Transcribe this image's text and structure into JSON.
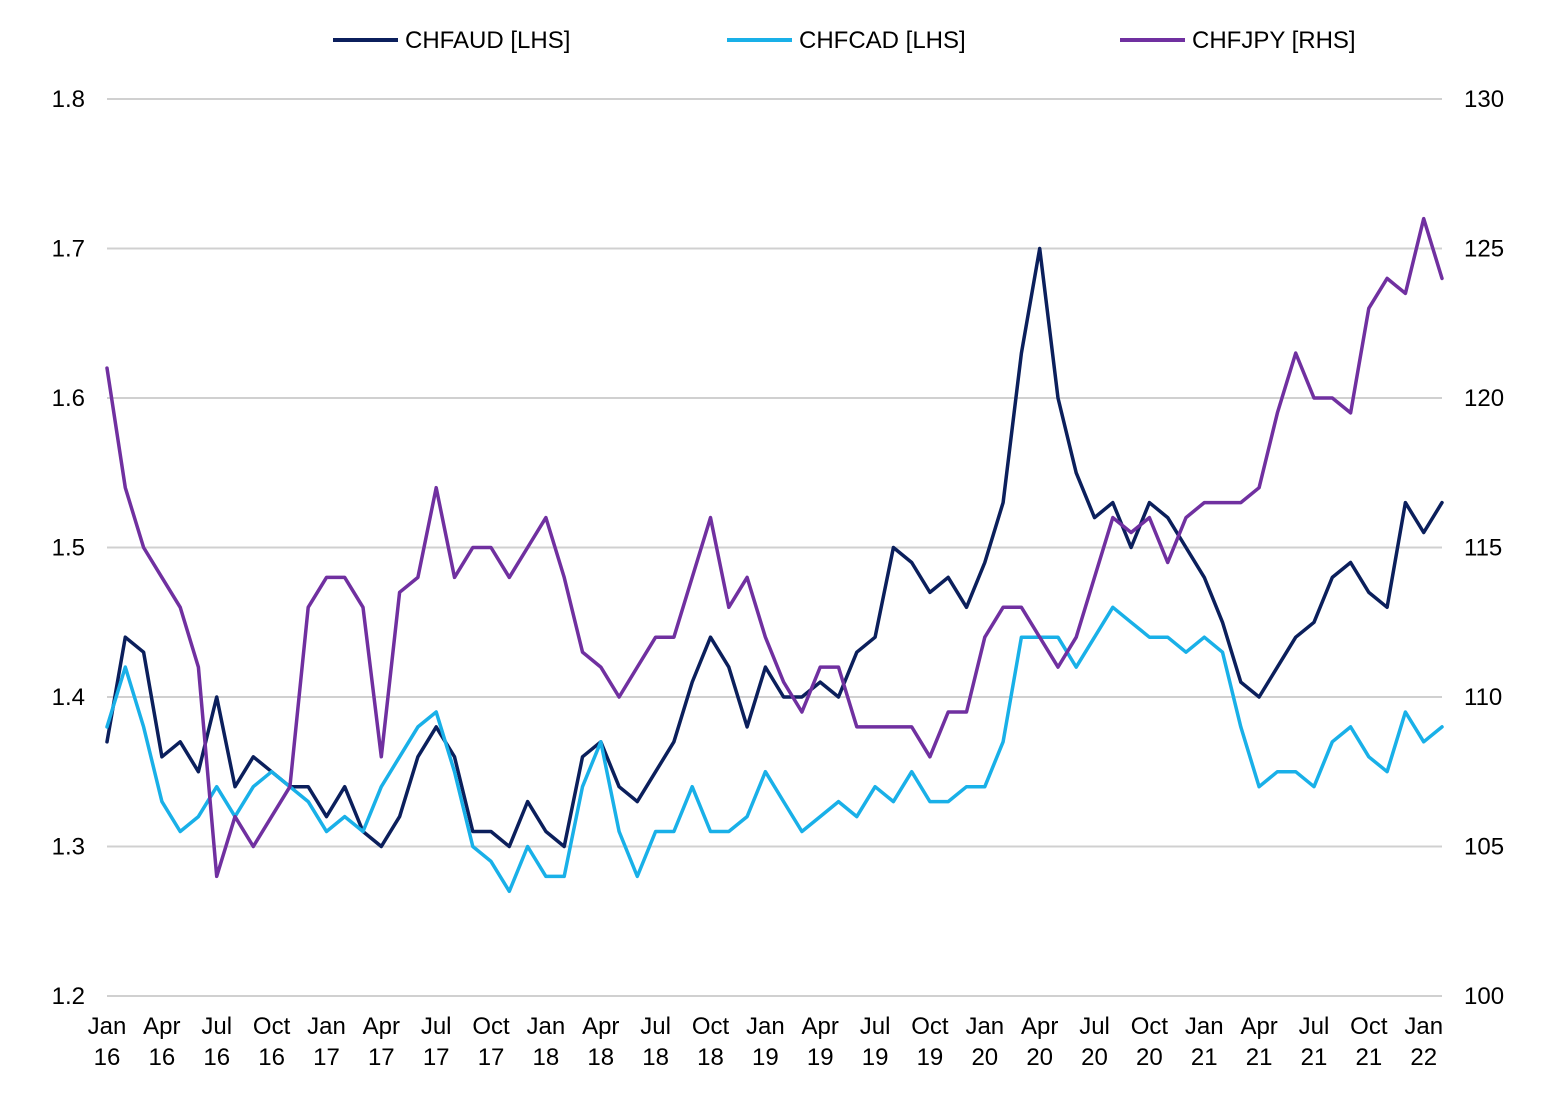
{
  "chart_data": {
    "type": "line",
    "legend_position": "top",
    "grid": true,
    "x_tick_labels": [
      {
        "month": "Jan",
        "year": "16"
      },
      {
        "month": "Apr",
        "year": "16"
      },
      {
        "month": "Jul",
        "year": "16"
      },
      {
        "month": "Oct",
        "year": "16"
      },
      {
        "month": "Jan",
        "year": "17"
      },
      {
        "month": "Apr",
        "year": "17"
      },
      {
        "month": "Jul",
        "year": "17"
      },
      {
        "month": "Oct",
        "year": "17"
      },
      {
        "month": "Jan",
        "year": "18"
      },
      {
        "month": "Apr",
        "year": "18"
      },
      {
        "month": "Jul",
        "year": "18"
      },
      {
        "month": "Oct",
        "year": "18"
      },
      {
        "month": "Jan",
        "year": "19"
      },
      {
        "month": "Apr",
        "year": "19"
      },
      {
        "month": "Jul",
        "year": "19"
      },
      {
        "month": "Oct",
        "year": "19"
      },
      {
        "month": "Jan",
        "year": "20"
      },
      {
        "month": "Apr",
        "year": "20"
      },
      {
        "month": "Jul",
        "year": "20"
      },
      {
        "month": "Oct",
        "year": "20"
      },
      {
        "month": "Jan",
        "year": "21"
      },
      {
        "month": "Apr",
        "year": "21"
      },
      {
        "month": "Jul",
        "year": "21"
      },
      {
        "month": "Oct",
        "year": "21"
      },
      {
        "month": "Jan",
        "year": "22"
      }
    ],
    "left_axis": {
      "ylim": [
        1.2,
        1.8
      ],
      "ticks": [
        "1.2",
        "1.3",
        "1.4",
        "1.5",
        "1.6",
        "1.7",
        "1.8"
      ]
    },
    "right_axis": {
      "ylim": [
        100,
        130
      ],
      "ticks": [
        "100",
        "105",
        "110",
        "115",
        "120",
        "125",
        "130"
      ]
    },
    "x_range": [
      "2016-01",
      "2022-02"
    ],
    "series": [
      {
        "name": "CHFAUD [LHS]",
        "axis": "left",
        "color": "#0b1f5c",
        "points": [
          [
            "2016-01",
            1.37
          ],
          [
            "2016-02",
            1.44
          ],
          [
            "2016-03",
            1.43
          ],
          [
            "2016-04",
            1.36
          ],
          [
            "2016-05",
            1.37
          ],
          [
            "2016-06",
            1.35
          ],
          [
            "2016-07",
            1.4
          ],
          [
            "2016-08",
            1.34
          ],
          [
            "2016-09",
            1.36
          ],
          [
            "2016-10",
            1.35
          ],
          [
            "2016-11",
            1.34
          ],
          [
            "2016-12",
            1.34
          ],
          [
            "2017-01",
            1.32
          ],
          [
            "2017-02",
            1.34
          ],
          [
            "2017-03",
            1.31
          ],
          [
            "2017-04",
            1.3
          ],
          [
            "2017-05",
            1.32
          ],
          [
            "2017-06",
            1.36
          ],
          [
            "2017-07",
            1.38
          ],
          [
            "2017-08",
            1.36
          ],
          [
            "2017-09",
            1.31
          ],
          [
            "2017-10",
            1.31
          ],
          [
            "2017-11",
            1.3
          ],
          [
            "2017-12",
            1.33
          ],
          [
            "2018-01",
            1.31
          ],
          [
            "2018-02",
            1.3
          ],
          [
            "2018-03",
            1.36
          ],
          [
            "2018-04",
            1.37
          ],
          [
            "2018-05",
            1.34
          ],
          [
            "2018-06",
            1.33
          ],
          [
            "2018-07",
            1.35
          ],
          [
            "2018-08",
            1.37
          ],
          [
            "2018-09",
            1.41
          ],
          [
            "2018-10",
            1.44
          ],
          [
            "2018-11",
            1.42
          ],
          [
            "2018-12",
            1.38
          ],
          [
            "2019-01",
            1.42
          ],
          [
            "2019-02",
            1.4
          ],
          [
            "2019-03",
            1.4
          ],
          [
            "2019-04",
            1.41
          ],
          [
            "2019-05",
            1.4
          ],
          [
            "2019-06",
            1.43
          ],
          [
            "2019-07",
            1.44
          ],
          [
            "2019-08",
            1.5
          ],
          [
            "2019-09",
            1.49
          ],
          [
            "2019-10",
            1.47
          ],
          [
            "2019-11",
            1.48
          ],
          [
            "2019-12",
            1.46
          ],
          [
            "2020-01",
            1.49
          ],
          [
            "2020-02",
            1.53
          ],
          [
            "2020-03",
            1.63
          ],
          [
            "2020-04",
            1.7
          ],
          [
            "2020-05",
            1.6
          ],
          [
            "2020-06",
            1.55
          ],
          [
            "2020-07",
            1.52
          ],
          [
            "2020-08",
            1.53
          ],
          [
            "2020-09",
            1.5
          ],
          [
            "2020-10",
            1.53
          ],
          [
            "2020-11",
            1.52
          ],
          [
            "2020-12",
            1.5
          ],
          [
            "2021-01",
            1.48
          ],
          [
            "2021-02",
            1.45
          ],
          [
            "2021-03",
            1.41
          ],
          [
            "2021-04",
            1.4
          ],
          [
            "2021-05",
            1.42
          ],
          [
            "2021-06",
            1.44
          ],
          [
            "2021-07",
            1.45
          ],
          [
            "2021-08",
            1.48
          ],
          [
            "2021-09",
            1.49
          ],
          [
            "2021-10",
            1.47
          ],
          [
            "2021-11",
            1.46
          ],
          [
            "2021-12",
            1.53
          ],
          [
            "2022-01",
            1.51
          ],
          [
            "2022-02",
            1.53
          ]
        ]
      },
      {
        "name": "CHFCAD [LHS]",
        "axis": "left",
        "color": "#19b0e8",
        "points": [
          [
            "2016-01",
            1.38
          ],
          [
            "2016-02",
            1.42
          ],
          [
            "2016-03",
            1.38
          ],
          [
            "2016-04",
            1.33
          ],
          [
            "2016-05",
            1.31
          ],
          [
            "2016-06",
            1.32
          ],
          [
            "2016-07",
            1.34
          ],
          [
            "2016-08",
            1.32
          ],
          [
            "2016-09",
            1.34
          ],
          [
            "2016-10",
            1.35
          ],
          [
            "2016-11",
            1.34
          ],
          [
            "2016-12",
            1.33
          ],
          [
            "2017-01",
            1.31
          ],
          [
            "2017-02",
            1.32
          ],
          [
            "2017-03",
            1.31
          ],
          [
            "2017-04",
            1.34
          ],
          [
            "2017-05",
            1.36
          ],
          [
            "2017-06",
            1.38
          ],
          [
            "2017-07",
            1.39
          ],
          [
            "2017-08",
            1.35
          ],
          [
            "2017-09",
            1.3
          ],
          [
            "2017-10",
            1.29
          ],
          [
            "2017-11",
            1.27
          ],
          [
            "2017-12",
            1.3
          ],
          [
            "2018-01",
            1.28
          ],
          [
            "2018-02",
            1.28
          ],
          [
            "2018-03",
            1.34
          ],
          [
            "2018-04",
            1.37
          ],
          [
            "2018-05",
            1.31
          ],
          [
            "2018-06",
            1.28
          ],
          [
            "2018-07",
            1.31
          ],
          [
            "2018-08",
            1.31
          ],
          [
            "2018-09",
            1.34
          ],
          [
            "2018-10",
            1.31
          ],
          [
            "2018-11",
            1.31
          ],
          [
            "2018-12",
            1.32
          ],
          [
            "2019-01",
            1.35
          ],
          [
            "2019-02",
            1.33
          ],
          [
            "2019-03",
            1.31
          ],
          [
            "2019-04",
            1.32
          ],
          [
            "2019-05",
            1.33
          ],
          [
            "2019-06",
            1.32
          ],
          [
            "2019-07",
            1.34
          ],
          [
            "2019-08",
            1.33
          ],
          [
            "2019-09",
            1.35
          ],
          [
            "2019-10",
            1.33
          ],
          [
            "2019-11",
            1.33
          ],
          [
            "2019-12",
            1.34
          ],
          [
            "2020-01",
            1.34
          ],
          [
            "2020-02",
            1.37
          ],
          [
            "2020-03",
            1.44
          ],
          [
            "2020-04",
            1.44
          ],
          [
            "2020-05",
            1.44
          ],
          [
            "2020-06",
            1.42
          ],
          [
            "2020-07",
            1.44
          ],
          [
            "2020-08",
            1.46
          ],
          [
            "2020-09",
            1.45
          ],
          [
            "2020-10",
            1.44
          ],
          [
            "2020-11",
            1.44
          ],
          [
            "2020-12",
            1.43
          ],
          [
            "2021-01",
            1.44
          ],
          [
            "2021-02",
            1.43
          ],
          [
            "2021-03",
            1.38
          ],
          [
            "2021-04",
            1.34
          ],
          [
            "2021-05",
            1.35
          ],
          [
            "2021-06",
            1.35
          ],
          [
            "2021-07",
            1.34
          ],
          [
            "2021-08",
            1.37
          ],
          [
            "2021-09",
            1.38
          ],
          [
            "2021-10",
            1.36
          ],
          [
            "2021-11",
            1.35
          ],
          [
            "2021-12",
            1.39
          ],
          [
            "2022-01",
            1.37
          ],
          [
            "2022-02",
            1.38
          ]
        ]
      },
      {
        "name": "CHFJPY [RHS]",
        "axis": "right",
        "color": "#7030a0",
        "points": [
          [
            "2016-01",
            121.0
          ],
          [
            "2016-02",
            117.0
          ],
          [
            "2016-03",
            115.0
          ],
          [
            "2016-04",
            114.0
          ],
          [
            "2016-05",
            113.0
          ],
          [
            "2016-06",
            111.0
          ],
          [
            "2016-07",
            104.0
          ],
          [
            "2016-08",
            106.0
          ],
          [
            "2016-09",
            105.0
          ],
          [
            "2016-10",
            106.0
          ],
          [
            "2016-11",
            107.0
          ],
          [
            "2016-12",
            113.0
          ],
          [
            "2017-01",
            114.0
          ],
          [
            "2017-02",
            114.0
          ],
          [
            "2017-03",
            113.0
          ],
          [
            "2017-04",
            108.0
          ],
          [
            "2017-05",
            113.5
          ],
          [
            "2017-06",
            114.0
          ],
          [
            "2017-07",
            117.0
          ],
          [
            "2017-08",
            114.0
          ],
          [
            "2017-09",
            115.0
          ],
          [
            "2017-10",
            115.0
          ],
          [
            "2017-11",
            114.0
          ],
          [
            "2017-12",
            115.0
          ],
          [
            "2018-01",
            116.0
          ],
          [
            "2018-02",
            114.0
          ],
          [
            "2018-03",
            111.5
          ],
          [
            "2018-04",
            111.0
          ],
          [
            "2018-05",
            110.0
          ],
          [
            "2018-06",
            111.0
          ],
          [
            "2018-07",
            112.0
          ],
          [
            "2018-08",
            112.0
          ],
          [
            "2018-09",
            114.0
          ],
          [
            "2018-10",
            116.0
          ],
          [
            "2018-11",
            113.0
          ],
          [
            "2018-12",
            114.0
          ],
          [
            "2019-01",
            112.0
          ],
          [
            "2019-02",
            110.5
          ],
          [
            "2019-03",
            109.5
          ],
          [
            "2019-04",
            111.0
          ],
          [
            "2019-05",
            111.0
          ],
          [
            "2019-06",
            109.0
          ],
          [
            "2019-07",
            109.0
          ],
          [
            "2019-08",
            109.0
          ],
          [
            "2019-09",
            109.0
          ],
          [
            "2019-10",
            108.0
          ],
          [
            "2019-11",
            109.5
          ],
          [
            "2019-12",
            109.5
          ],
          [
            "2020-01",
            112.0
          ],
          [
            "2020-02",
            113.0
          ],
          [
            "2020-03",
            113.0
          ],
          [
            "2020-04",
            112.0
          ],
          [
            "2020-05",
            111.0
          ],
          [
            "2020-06",
            112.0
          ],
          [
            "2020-07",
            114.0
          ],
          [
            "2020-08",
            116.0
          ],
          [
            "2020-09",
            115.5
          ],
          [
            "2020-10",
            116.0
          ],
          [
            "2020-11",
            114.5
          ],
          [
            "2020-12",
            116.0
          ],
          [
            "2021-01",
            116.5
          ],
          [
            "2021-02",
            116.5
          ],
          [
            "2021-03",
            116.5
          ],
          [
            "2021-04",
            117.0
          ],
          [
            "2021-05",
            119.5
          ],
          [
            "2021-06",
            121.5
          ],
          [
            "2021-07",
            120.0
          ],
          [
            "2021-08",
            120.0
          ],
          [
            "2021-09",
            119.5
          ],
          [
            "2021-10",
            123.0
          ],
          [
            "2021-11",
            124.0
          ],
          [
            "2021-12",
            123.5
          ],
          [
            "2022-01",
            126.0
          ],
          [
            "2022-02",
            124.0
          ]
        ]
      }
    ]
  }
}
